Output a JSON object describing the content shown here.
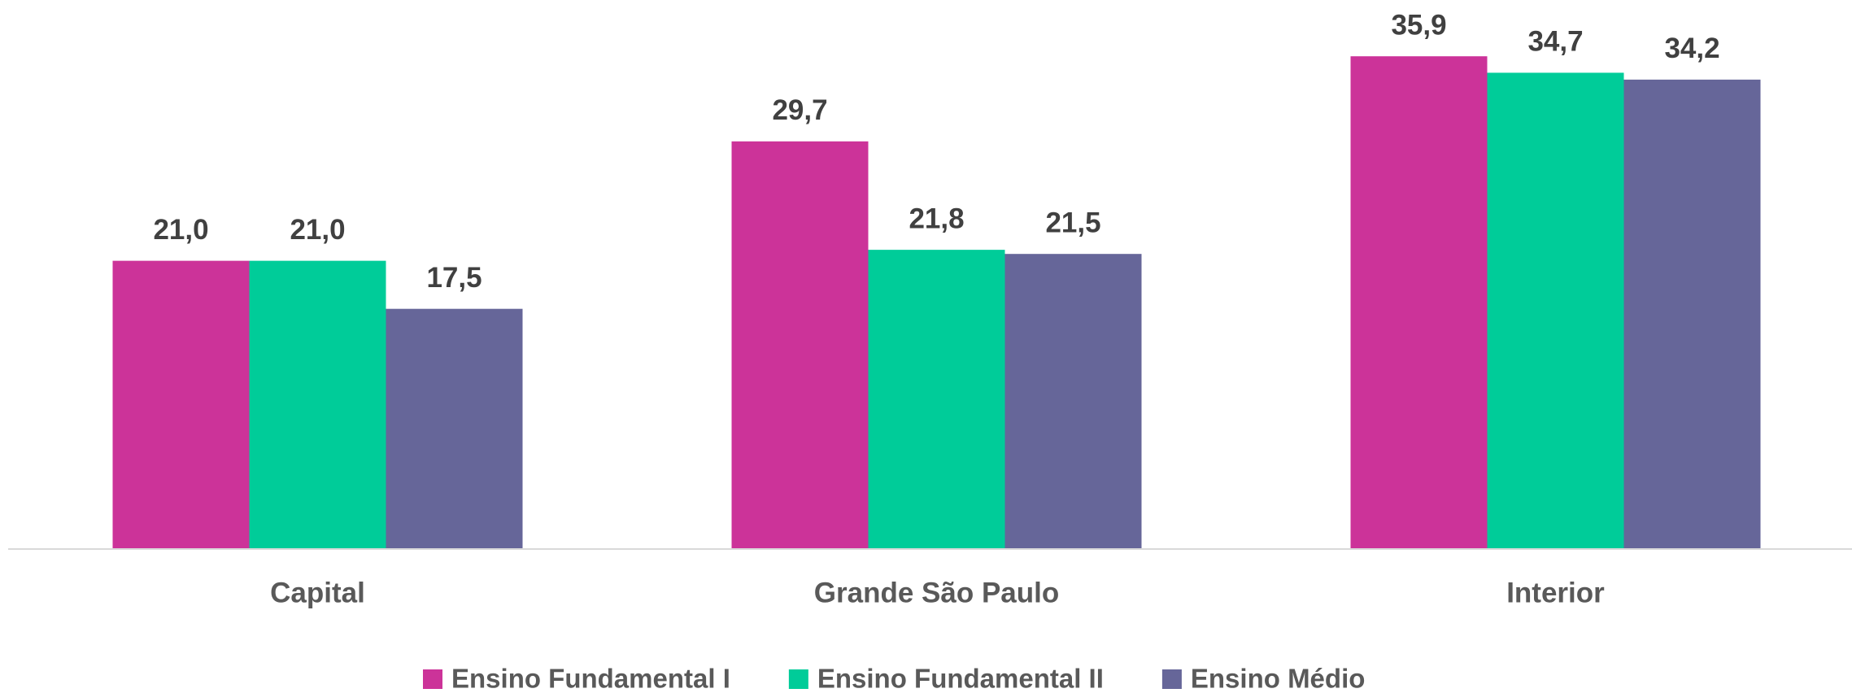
{
  "chart_data": {
    "type": "bar",
    "categories": [
      "Capital",
      "Grande São Paulo",
      "Interior"
    ],
    "series": [
      {
        "name": "Ensino Fundamental I",
        "color": "#cc3399",
        "values": [
          21.0,
          29.7,
          35.9
        ],
        "value_labels": [
          "21,0",
          "29,7",
          "35,9"
        ]
      },
      {
        "name": "Ensino Fundamental II",
        "color": "#00cc99",
        "values": [
          21.0,
          21.8,
          34.7
        ],
        "value_labels": [
          "21,0",
          "21,8",
          "34,7"
        ]
      },
      {
        "name": "Ensino Médio",
        "color": "#666699",
        "values": [
          17.5,
          21.5,
          34.2
        ],
        "value_labels": [
          "17,5",
          "21,5",
          "34,2"
        ]
      }
    ],
    "ylim": [
      0,
      40
    ],
    "legend": "bottom"
  }
}
